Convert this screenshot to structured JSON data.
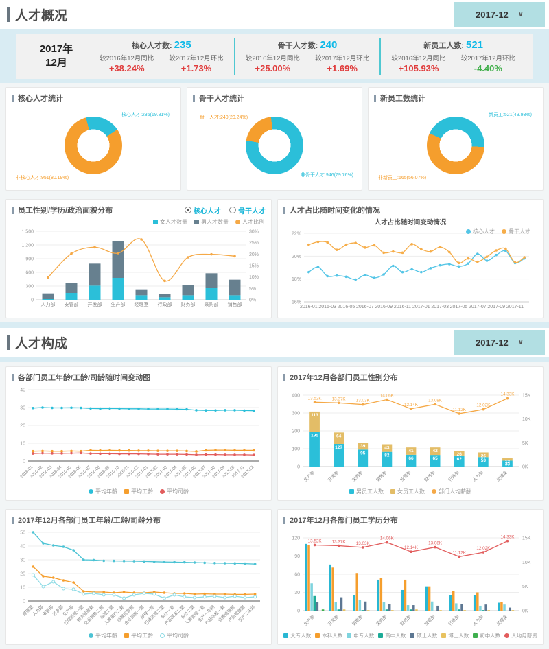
{
  "colors": {
    "cyan": "#2bbfd9",
    "orange": "#f59e2d",
    "slate": "#67808f",
    "gold": "#e3bd67",
    "red": "#e25d5d",
    "stat_up": "#e03b3b",
    "stat_down": "#3fae49",
    "value_cyan": "#0fb9e8",
    "band": "#d9ecf3",
    "dropdown_bg": "#b2dfe3"
  },
  "section_overview": {
    "title": "人才概况",
    "date_value": "2017-12",
    "summary": {
      "year": "2017年",
      "month": "12月",
      "metrics": [
        {
          "label": "核心人才数:",
          "value": "235",
          "items": [
            {
              "label": "较2016年12月同比",
              "value": "+38.24%",
              "dir": "up"
            },
            {
              "label": "较2017年12月环比",
              "value": "+1.73%",
              "dir": "up"
            }
          ]
        },
        {
          "label": "骨干人才数:",
          "value": "240",
          "items": [
            {
              "label": "较2016年12月同比",
              "value": "+25.00%",
              "dir": "up"
            },
            {
              "label": "较2017年12月环比",
              "value": "+1.69%",
              "dir": "up"
            }
          ]
        },
        {
          "label": "新员工人数:",
          "value": "521",
          "items": [
            {
              "label": "较2016年12月同比",
              "value": "+105.93%",
              "dir": "up"
            },
            {
              "label": "较2017年12月环比",
              "value": "-4.40%",
              "dir": "down"
            }
          ]
        }
      ]
    },
    "donut_panels": [
      {
        "title": "核心人才统计",
        "main_label": "核心人才:235(19.81%)",
        "other_label": "非核心人才:951(80.19%)",
        "main_value": 235,
        "other_value": 951,
        "main_pct": 19.81,
        "other_pct": 80.19,
        "main_color": "#2bbfd9",
        "other_color": "#f59e2d",
        "start_deg": -15
      },
      {
        "title": "骨干人才统计",
        "main_label": "骨干人才:240(20.24%)",
        "other_label": "非骨干人才:946(79.76%)",
        "main_value": 240,
        "other_value": 946,
        "main_pct": 20.24,
        "other_pct": 79.76,
        "main_color": "#f59e2d",
        "other_color": "#2bbfd9",
        "start_deg": -80
      },
      {
        "title": "新员工数统计",
        "main_label": "新员工:521(43.93%)",
        "other_label": "非新员工:665(56.07%)",
        "main_value": 521,
        "other_value": 665,
        "main_pct": 43.93,
        "other_pct": 56.07,
        "main_color": "#2bbfd9",
        "other_color": "#f59e2d",
        "start_deg": -65
      }
    ],
    "gender_panel": {
      "title": "员工性别/学历/政治面貌分布",
      "radio_options": [
        {
          "label": "核心人才",
          "selected": true
        },
        {
          "label": "骨干人才",
          "selected": false
        }
      ]
    },
    "ratio_panel": {
      "title": "人才占比随时间变化的情况"
    }
  },
  "section_composition": {
    "title": "人才构成",
    "date_value": "2017-12",
    "panel_titles": {
      "age_trend": "各部门员工年龄/工龄/司龄随时间变动图",
      "dept_gender": "2017年12月各部门员工性别分布",
      "dept_age": "2017年12月各部门员工年龄/工龄/司龄分布",
      "dept_edu": "2017年12月各部门员工学历分布"
    }
  },
  "chart_data": [
    {
      "id": "talent_gender",
      "type": "bar+line",
      "bar_mode": "stack",
      "bar_frac": 0.5,
      "ml": 36,
      "mr": 28,
      "mt": 8,
      "mb": 18,
      "categories": [
        "人力部",
        "安管部",
        "开发部",
        "生产部",
        "经理室",
        "行政部",
        "财务部",
        "采购部",
        "销售部"
      ],
      "left_axis": {
        "min": 0,
        "max": 1500,
        "ticks": [
          0,
          300,
          600,
          900,
          1200,
          1500
        ],
        "labels": [
          "0",
          "300",
          "600",
          "900",
          "1,200",
          "1,500"
        ]
      },
      "right_axis": {
        "min": 0,
        "max": 30,
        "ticks": [
          0,
          5,
          10,
          15,
          20,
          25,
          30
        ],
        "labels": [
          "0%",
          "5%",
          "10%",
          "15%",
          "20%",
          "25%",
          "30%"
        ]
      },
      "series": [
        {
          "name": "女人才数量",
          "type": "bar",
          "color": "#2bbfd9",
          "values": [
            15,
            150,
            310,
            480,
            100,
            55,
            100,
            255,
            100
          ]
        },
        {
          "name": "男人才数量",
          "type": "bar",
          "color": "#67808f",
          "values": [
            125,
            220,
            480,
            810,
            130,
            75,
            220,
            325,
            340
          ]
        },
        {
          "name": "人才比例",
          "type": "line",
          "axis": "right",
          "color": "#f5a947",
          "smooth": true,
          "values": [
            9.8,
            20.2,
            23,
            20.4,
            26.4,
            8.3,
            18.6,
            19.9,
            19.1
          ]
        }
      ]
    },
    {
      "id": "ratio_trend",
      "type": "line",
      "inner_title": "人才占比随时间变动情况",
      "label_every": 2,
      "ml": 30,
      "mr": 12,
      "mt": 24,
      "mb": 16,
      "categories": [
        "2016-01",
        "2016-02",
        "2016-03",
        "2016-04",
        "2016-05",
        "2016-06",
        "2016-07",
        "2016-08",
        "2016-09",
        "2016-10",
        "2016-11",
        "2016-12",
        "2017-01",
        "2017-02",
        "2017-03",
        "2017-04",
        "2017-05",
        "2017-06",
        "2017-07",
        "2017-08",
        "2017-09",
        "2017-10",
        "2017-11",
        "2017-12"
      ],
      "left_axis": {
        "min": 16,
        "max": 22,
        "ticks": [
          16,
          18,
          20,
          22
        ],
        "labels": [
          "16%",
          "18%",
          "20%",
          "22%"
        ]
      },
      "series": [
        {
          "name": "核心人才",
          "type": "line",
          "color": "#54c5e6",
          "smooth": true,
          "values": [
            18.6,
            19.05,
            18.25,
            18.3,
            18.2,
            17.95,
            18.35,
            18.1,
            18.4,
            19.15,
            18.6,
            18.85,
            18.6,
            18.95,
            19.2,
            19.3,
            19.1,
            19.35,
            20.2,
            19.6,
            20.1,
            20.45,
            19.4,
            19.8
          ]
        },
        {
          "name": "骨干人才",
          "type": "line",
          "color": "#f6ad49",
          "smooth": true,
          "values": [
            21,
            21.25,
            21.2,
            20.55,
            21,
            21.15,
            20.75,
            20.95,
            20.3,
            20.4,
            20.3,
            21.05,
            20.6,
            20.4,
            20.8,
            20.35,
            19.4,
            19.8,
            19.5,
            19.95,
            20.5,
            20.65,
            19.45,
            19.9
          ]
        }
      ]
    },
    {
      "id": "age_trend",
      "type": "line",
      "rotate": true,
      "ml": 24,
      "mr": 10,
      "mt": 8,
      "mb": 38,
      "baseline_bold": true,
      "categories": [
        "2016-01",
        "2016-02",
        "2016-03",
        "2016-04",
        "2016-05",
        "2016-06",
        "2016-07",
        "2016-08",
        "2016-09",
        "2016-10",
        "2016-11",
        "2016-12",
        "2017-01",
        "2017-02",
        "2017-03",
        "2017-04",
        "2017-05",
        "2017-06",
        "2017-07",
        "2017-08",
        "2017-09",
        "2017-10",
        "2017-11",
        "2017-12"
      ],
      "left_axis": {
        "min": 0,
        "max": 40,
        "ticks": [
          0,
          10,
          20,
          30,
          40
        ],
        "labels": [
          "0",
          "10",
          "20",
          "30",
          "40"
        ]
      },
      "series": [
        {
          "name": "平均年龄",
          "type": "line",
          "color": "#2bbfd9",
          "legend_marker": "dot",
          "values": [
            29.7,
            30,
            29.8,
            29.8,
            29.9,
            29.8,
            29.5,
            29.4,
            29.5,
            29.4,
            29.3,
            29.3,
            29.2,
            29.2,
            29.2,
            29.1,
            29,
            28.5,
            28.4,
            28.4,
            28.5,
            28.5,
            28.3,
            28.2
          ]
        },
        {
          "name": "平均工龄",
          "type": "line",
          "color": "#f59e2d",
          "legend_marker": "sq",
          "values": [
            5.5,
            5.6,
            5.5,
            5.5,
            5.6,
            5.5,
            6,
            5.9,
            6,
            5.9,
            5.9,
            5.8,
            5.8,
            5.7,
            5.7,
            5.7,
            5.6,
            5.4,
            6,
            6.1,
            6.1,
            6,
            6,
            6
          ]
        },
        {
          "name": "平均司龄",
          "type": "line",
          "color": "#e25d5d",
          "legend_marker": "dot",
          "values": [
            4.2,
            4.4,
            4.3,
            4.3,
            4.4,
            4.5,
            4.2,
            4.1,
            4.1,
            4,
            4,
            4,
            3.9,
            3.8,
            3.8,
            3.8,
            3.7,
            3.5,
            3.6,
            3.6,
            3.5,
            3.5,
            3.5,
            3.4
          ]
        }
      ]
    },
    {
      "id": "dept_gender",
      "type": "bar+line",
      "bar_mode": "stack",
      "bar_frac": 0.42,
      "rotate": true,
      "ml": 28,
      "mr": 26,
      "mt": 16,
      "mb": 30,
      "categories": [
        "生产部",
        "开发部",
        "采购部",
        "销售部",
        "安管部",
        "财务部",
        "行政部",
        "人力部",
        "经理室"
      ],
      "left_axis": {
        "min": 0,
        "max": 400,
        "ticks": [
          0,
          100,
          200,
          300,
          400
        ],
        "labels": [
          "0",
          "100",
          "200",
          "300",
          "400"
        ]
      },
      "right_axis": {
        "min": 0,
        "max": 15,
        "ticks": [
          0,
          5,
          10,
          15
        ],
        "labels": [
          "0K",
          "5K",
          "10K",
          "15K"
        ]
      },
      "series": [
        {
          "name": "男员工人数",
          "type": "bar",
          "color": "#2bbfd9",
          "show_values": true,
          "values": [
            195,
            127,
            95,
            82,
            66,
            65,
            62,
            53,
            33
          ]
        },
        {
          "name": "女员工人数",
          "type": "bar",
          "color": "#e3bd67",
          "show_values": true,
          "values": [
            113,
            64,
            39,
            43,
            41,
            42,
            26,
            26,
            13
          ]
        },
        {
          "name": "部门人均薪酬",
          "type": "line",
          "axis": "right",
          "color": "#f5a947",
          "values": [
            13.52,
            13.37,
            13.03,
            14.06,
            12.14,
            13.08,
            11.12,
            12.02,
            14.33
          ],
          "point_labels": [
            "13.52K",
            "13.37K",
            "13.03K",
            "14.06K",
            "12.14K",
            "13.08K",
            "11.12K",
            "12.02K",
            "14.33K"
          ]
        }
      ]
    },
    {
      "id": "dept_age",
      "type": "line",
      "rotate": true,
      "ml": 24,
      "mr": 8,
      "mt": 8,
      "mb": 44,
      "baseline_bold": true,
      "categories": [
        "经理室",
        "人力部",
        "安管部",
        "开发部",
        "生产部",
        "行政运营一室",
        "物流管理室",
        "企业销售二室",
        "经理二室",
        "人事银行二室",
        "经理运营室",
        "企业销售一室",
        "经理一室",
        "行政运营二室",
        "会计一室",
        "产品研发二室",
        "会计二室",
        "人事管理一室",
        "生产一车间",
        "产品研发一室",
        "运维管理室",
        "产品管理室",
        "生产二车间"
      ],
      "left_axis": {
        "min": 0,
        "max": 50,
        "ticks": [
          0,
          10,
          20,
          30,
          40,
          50
        ],
        "labels": [
          "0",
          "10",
          "20",
          "30",
          "40",
          "50"
        ]
      },
      "series": [
        {
          "name": "平均年龄",
          "type": "line",
          "color": "#4cc3d4",
          "legend_marker": "dot",
          "values": [
            50,
            42,
            40.5,
            39.5,
            37,
            30,
            29.8,
            29.3,
            29.2,
            29.1,
            29,
            28.8,
            28.6,
            28.4,
            28.3,
            28.2,
            28,
            27.8,
            27.6,
            27.5,
            27.4,
            27.2,
            26.9
          ]
        },
        {
          "name": "平均工龄",
          "type": "line",
          "color": "#f59e2d",
          "legend_marker": "sq",
          "values": [
            25,
            18,
            17,
            15,
            13.5,
            7,
            6.5,
            6.5,
            6,
            6.5,
            6,
            6,
            6.5,
            6,
            5.5,
            5.5,
            5,
            5.2,
            5,
            5,
            4.8,
            4.8,
            5
          ]
        },
        {
          "name": "平均司龄",
          "type": "line",
          "color": "#8edbe5",
          "marker": "hollow",
          "legend_marker": "hollow",
          "values": [
            19,
            10.5,
            14,
            9,
            8.5,
            5,
            5.5,
            4.5,
            4.5,
            2,
            4.5,
            5.5,
            5,
            2,
            4.5,
            3,
            2.5,
            3,
            3.5,
            2.5,
            3.5,
            2.5,
            3
          ]
        }
      ]
    },
    {
      "id": "dept_edu",
      "type": "bar+line",
      "bar_mode": "group",
      "group_frac": 0.82,
      "rotate": true,
      "ml": 28,
      "mr": 26,
      "mt": 16,
      "mb": 30,
      "categories": [
        "生产部",
        "开发部",
        "销售部",
        "采购部",
        "财务部",
        "安管部",
        "行政部",
        "人力部",
        "经理室"
      ],
      "left_axis": {
        "min": 0,
        "max": 120,
        "ticks": [
          0,
          30,
          60,
          90,
          120
        ],
        "labels": [
          "0",
          "30",
          "60",
          "90",
          "120"
        ]
      },
      "right_axis": {
        "min": 0,
        "max": 15,
        "ticks": [
          0,
          5,
          10,
          15
        ],
        "labels": [
          "0K",
          "5K",
          "10K",
          "15K"
        ]
      },
      "series": [
        {
          "name": "大专人数",
          "type": "bar",
          "color": "#29b7d3",
          "values": [
            110,
            76,
            26,
            51,
            34,
            40,
            25,
            25,
            13
          ]
        },
        {
          "name": "本科人数",
          "type": "bar",
          "color": "#f59e2d",
          "values": [
            108,
            71,
            62,
            54,
            51,
            40,
            32,
            30,
            14
          ]
        },
        {
          "name": "中专人数",
          "type": "bar",
          "color": "#7fd4de",
          "values": [
            45,
            14,
            17,
            14,
            9,
            15,
            12,
            8,
            10
          ]
        },
        {
          "name": "高中人数",
          "type": "bar",
          "color": "#1cab97",
          "values": [
            24,
            2,
            1,
            2,
            2,
            0,
            2,
            1,
            0
          ]
        },
        {
          "name": "硕士人数",
          "type": "bar",
          "color": "#5d7792",
          "values": [
            14,
            22,
            15,
            11,
            9,
            8,
            11,
            10,
            5
          ]
        },
        {
          "name": "博士人数",
          "type": "bar",
          "color": "#e8c25f",
          "values": [
            0,
            2,
            1,
            1,
            2,
            1,
            1,
            1,
            1
          ]
        },
        {
          "name": "初中人数",
          "type": "bar",
          "color": "#3faf4e",
          "values": [
            2,
            0,
            0,
            0,
            0,
            0,
            0,
            0,
            0
          ]
        },
        {
          "name": "人均月薪资",
          "type": "line",
          "axis": "right",
          "color": "#e25d5d",
          "values": [
            13.52,
            13.37,
            13.03,
            14.06,
            12.14,
            13.08,
            11.12,
            12.02,
            14.33
          ],
          "point_labels": [
            "13.52K",
            "13.37K",
            "13.03K",
            "14.06K",
            "12.14K",
            "13.08K",
            "11.12K",
            "12.02K",
            "14.33K"
          ]
        }
      ]
    }
  ]
}
